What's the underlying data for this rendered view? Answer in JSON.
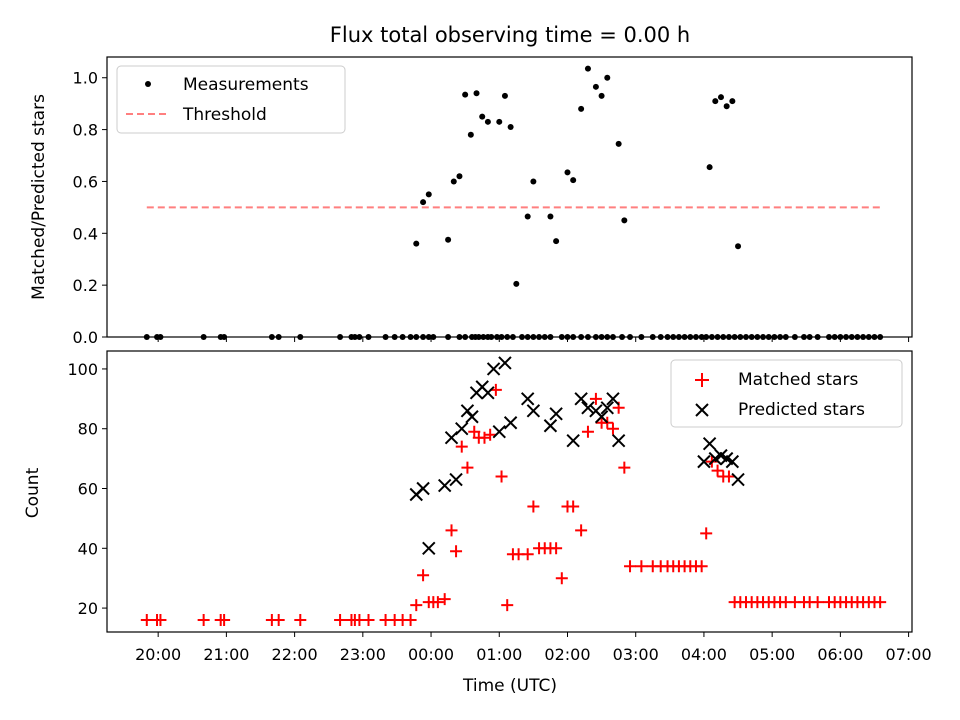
{
  "title": "Flux total observing time = 0.00 h",
  "chart_data": [
    {
      "type": "scatter",
      "panel": "top",
      "ylabel": "Matched/Predicted stars",
      "xlabel": "",
      "ylim": [
        0,
        1.08
      ],
      "yticks": [
        "0.0",
        "0.2",
        "0.4",
        "0.6",
        "0.8",
        "1.0"
      ],
      "xlim_hours": [
        -4.75,
        7.05
      ],
      "legend": {
        "placement": "top-left",
        "entries": [
          "Measurements",
          "Threshold"
        ]
      },
      "threshold": {
        "name": "Threshold",
        "y": 0.5,
        "x_range": [
          "19:50",
          "06:35"
        ],
        "color": "#ff7f7f"
      },
      "series": [
        {
          "name": "Measurements",
          "color": "#000000",
          "x": [
            "19:50",
            "19:59",
            "20:02",
            "20:40",
            "20:55",
            "20:58",
            "21:40",
            "21:46",
            "22:05",
            "22:40",
            "22:50",
            "22:53",
            "22:57",
            "23:05",
            "23:20",
            "23:28",
            "23:35",
            "23:42",
            "23:47",
            "23:53",
            "23:58",
            "00:02",
            "00:15",
            "00:25",
            "00:30",
            "00:36",
            "00:39",
            "00:42",
            "00:46",
            "00:50",
            "00:53",
            "00:58",
            "01:02",
            "01:07",
            "01:12",
            "01:20",
            "01:25",
            "01:30",
            "01:35",
            "01:40",
            "01:45",
            "01:55",
            "02:00",
            "02:05",
            "02:12",
            "02:18",
            "02:25",
            "02:30",
            "02:35",
            "02:40",
            "02:48",
            "02:55",
            "03:05",
            "03:15",
            "03:22",
            "03:28",
            "03:33",
            "03:38",
            "03:43",
            "03:48",
            "03:53",
            "03:58",
            "04:02",
            "04:07",
            "04:12",
            "04:17",
            "04:22",
            "04:27",
            "04:32",
            "04:37",
            "04:42",
            "04:47",
            "04:52",
            "04:57",
            "05:02",
            "05:07",
            "05:12",
            "05:20",
            "05:28",
            "05:33",
            "05:40",
            "05:50",
            "05:55",
            "06:00",
            "06:05",
            "06:10",
            "06:15",
            "06:20",
            "06:25",
            "06:30",
            "06:35",
            "23:47",
            "23:53",
            "23:58",
            "00:15",
            "00:20",
            "00:25",
            "00:30",
            "00:35",
            "00:40",
            "00:45",
            "00:50",
            "01:00",
            "01:05",
            "01:10",
            "01:15",
            "01:25",
            "01:30",
            "01:45",
            "01:50",
            "02:00",
            "02:05",
            "02:12",
            "02:18",
            "02:25",
            "02:30",
            "02:35",
            "02:45",
            "02:50",
            "04:05",
            "04:10",
            "04:15",
            "04:20",
            "04:25",
            "04:30"
          ],
          "y": [
            0,
            0,
            0,
            0,
            0,
            0,
            0,
            0,
            0,
            0,
            0,
            0,
            0,
            0,
            0,
            0,
            0,
            0,
            0,
            0,
            0,
            0,
            0,
            0,
            0,
            0,
            0,
            0,
            0,
            0,
            0,
            0,
            0,
            0,
            0,
            0,
            0,
            0,
            0,
            0,
            0,
            0,
            0,
            0,
            0,
            0,
            0,
            0,
            0,
            0,
            0,
            0,
            0,
            0,
            0,
            0,
            0,
            0,
            0,
            0,
            0,
            0,
            0,
            0,
            0,
            0,
            0,
            0,
            0,
            0,
            0,
            0,
            0,
            0,
            0,
            0,
            0,
            0,
            0,
            0,
            0,
            0,
            0,
            0,
            0,
            0,
            0,
            0,
            0,
            0,
            0,
            0.36,
            0.52,
            0.55,
            0.375,
            0.6,
            0.62,
            0.935,
            0.78,
            0.94,
            0.85,
            0.83,
            0.83,
            0.93,
            0.81,
            0.205,
            0.465,
            0.6,
            0.465,
            0.37,
            0.635,
            0.605,
            0.88,
            1.035,
            0.965,
            0.93,
            1.0,
            0.745,
            0.45,
            0.655,
            0.91,
            0.925,
            0.89,
            0.91,
            0.35
          ],
          "marker": "dot"
        }
      ]
    },
    {
      "type": "scatter",
      "panel": "bottom",
      "xlabel": "Time (UTC)",
      "ylabel": "Count",
      "ylim": [
        12,
        106
      ],
      "yticks": [
        "20",
        "40",
        "60",
        "80",
        "100"
      ],
      "xlim_hours": [
        -4.75,
        7.05
      ],
      "xticks": [
        "20:00",
        "21:00",
        "22:00",
        "23:00",
        "00:00",
        "01:00",
        "02:00",
        "03:00",
        "04:00",
        "05:00",
        "06:00",
        "07:00"
      ],
      "legend": {
        "placement": "top-right",
        "entries": [
          "Matched stars",
          "Predicted stars"
        ]
      },
      "series": [
        {
          "name": "Matched stars",
          "color": "#ff0000",
          "marker": "plus",
          "x": [
            "19:50",
            "19:59",
            "20:02",
            "20:40",
            "20:55",
            "20:58",
            "21:40",
            "21:46",
            "22:05",
            "22:40",
            "22:50",
            "22:53",
            "22:57",
            "23:05",
            "23:20",
            "23:28",
            "23:35",
            "23:42",
            "23:47",
            "23:53",
            "23:58",
            "00:02",
            "00:06",
            "00:12",
            "00:18",
            "00:22",
            "00:27",
            "00:32",
            "00:38",
            "00:42",
            "00:47",
            "00:52",
            "00:57",
            "01:02",
            "01:07",
            "01:12",
            "01:17",
            "01:25",
            "01:30",
            "01:35",
            "01:40",
            "01:45",
            "01:50",
            "01:55",
            "02:00",
            "02:05",
            "02:12",
            "02:18",
            "02:25",
            "02:30",
            "02:35",
            "02:40",
            "02:45",
            "02:50",
            "02:55",
            "03:05",
            "03:15",
            "03:22",
            "03:28",
            "03:33",
            "03:38",
            "03:43",
            "03:48",
            "03:53",
            "03:58",
            "04:02",
            "04:07",
            "04:12",
            "04:17",
            "04:22",
            "04:27",
            "04:32",
            "04:37",
            "04:42",
            "04:47",
            "04:52",
            "04:57",
            "05:02",
            "05:07",
            "05:12",
            "05:20",
            "05:28",
            "05:33",
            "05:40",
            "05:50",
            "05:55",
            "06:00",
            "06:05",
            "06:10",
            "06:15",
            "06:20",
            "06:25",
            "06:30",
            "06:35"
          ],
          "y": [
            16,
            16,
            16,
            16,
            16,
            16,
            16,
            16,
            16,
            16,
            16,
            16,
            16,
            16,
            16,
            16,
            16,
            16,
            21,
            31,
            22,
            22,
            22,
            23,
            46,
            39,
            74,
            67,
            79,
            77,
            77,
            78,
            93,
            64,
            21,
            38,
            38,
            38,
            54,
            40,
            40,
            40,
            40,
            30,
            54,
            54,
            46,
            79,
            90,
            82,
            82,
            80,
            87,
            67,
            34,
            34,
            34,
            34,
            34,
            34,
            34,
            34,
            34,
            34,
            34,
            45,
            69,
            66,
            64,
            64,
            22,
            22,
            22,
            22,
            22,
            22,
            22,
            22,
            22,
            22,
            22,
            22,
            22,
            22,
            22,
            22,
            22,
            22,
            22,
            22,
            22,
            22,
            22,
            22
          ]
        },
        {
          "name": "Predicted stars",
          "color": "#000000",
          "marker": "x",
          "x": [
            "23:47",
            "23:53",
            "23:58",
            "00:12",
            "00:18",
            "00:22",
            "00:27",
            "00:32",
            "00:36",
            "00:40",
            "00:45",
            "00:50",
            "00:55",
            "01:00",
            "01:05",
            "01:10",
            "01:25",
            "01:30",
            "01:45",
            "01:50",
            "02:05",
            "02:12",
            "02:18",
            "02:25",
            "02:30",
            "02:35",
            "02:40",
            "02:45",
            "04:00",
            "04:05",
            "04:10",
            "04:15",
            "04:20",
            "04:25",
            "04:30"
          ],
          "y": [
            58,
            60,
            40,
            61,
            77,
            63,
            80,
            86,
            84,
            92,
            94,
            92,
            100,
            79,
            102,
            82,
            90,
            86,
            81,
            85,
            76,
            90,
            87,
            86,
            84,
            87,
            90,
            76,
            69,
            75,
            70,
            71,
            70,
            69,
            63
          ]
        }
      ]
    }
  ]
}
